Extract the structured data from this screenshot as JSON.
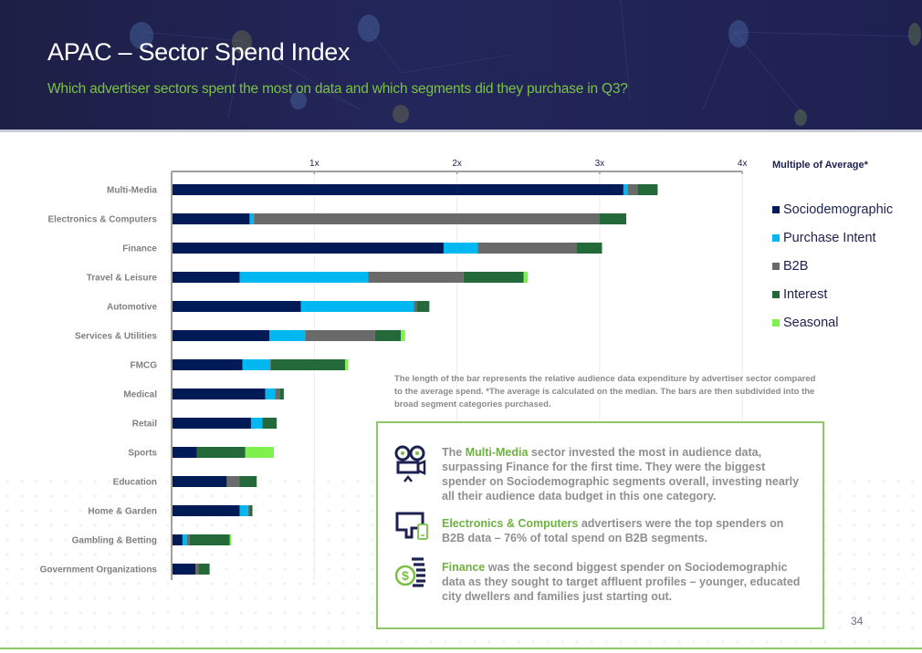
{
  "header": {
    "title": "APAC – Sector Spend Index",
    "subtitle": "Which advertiser sectors spent the most on data and which segments did they purchase in Q3?"
  },
  "chart_data": {
    "type": "bar",
    "orientation": "horizontal",
    "stacked": true,
    "title": "",
    "xlabel": "Multiple of Average*",
    "ylabel": "",
    "xlim": [
      0,
      4
    ],
    "x_ticks": [
      "1x",
      "2x",
      "3x",
      "4x"
    ],
    "x_tick_values": [
      1,
      2,
      3,
      4
    ],
    "grid": true,
    "legend_position": "right",
    "categories": [
      "Multi-Media",
      "Electronics & Computers",
      "Finance",
      "Travel & Leisure",
      "Automotive",
      "Services & Utilities",
      "FMCG",
      "Medical",
      "Retail",
      "Sports",
      "Education",
      "Home & Garden",
      "Gambling & Betting",
      "Government Organizations"
    ],
    "series": [
      {
        "name": "Sociodemographic",
        "color": "#001b55",
        "values": [
          3.16,
          0.54,
          1.9,
          0.47,
          0.9,
          0.68,
          0.49,
          0.65,
          0.55,
          0.17,
          0.38,
          0.47,
          0.07,
          0.16
        ]
      },
      {
        "name": "Purchase Intent",
        "color": "#00b8f1",
        "values": [
          0.03,
          0.03,
          0.24,
          0.9,
          0.79,
          0.25,
          0.19,
          0.07,
          0.08,
          0.0,
          0.0,
          0.06,
          0.03,
          0.0
        ]
      },
      {
        "name": "B2B",
        "color": "#6a6a6a",
        "values": [
          0.07,
          2.42,
          0.69,
          0.67,
          0.02,
          0.49,
          0.01,
          0.03,
          0.0,
          0.0,
          0.09,
          0.01,
          0.02,
          0.02
        ]
      },
      {
        "name": "Interest",
        "color": "#23693a",
        "values": [
          0.14,
          0.19,
          0.18,
          0.42,
          0.09,
          0.18,
          0.52,
          0.03,
          0.1,
          0.34,
          0.12,
          0.02,
          0.28,
          0.08
        ]
      },
      {
        "name": "Seasonal",
        "color": "#7ef14f",
        "values": [
          0.0,
          0.0,
          0.0,
          0.03,
          0.0,
          0.03,
          0.02,
          0.0,
          0.0,
          0.2,
          0.0,
          0.0,
          0.01,
          0.0
        ]
      }
    ]
  },
  "legend": {
    "title": "Multiple of Average*"
  },
  "note": "The length of the bar represents the relative audience data expenditure by advertiser sector compared to the average spend. *The average is calculated on the median. The bars are then subdivided into the broad segment categories purchased.",
  "insights": [
    {
      "icon": "video-camera-icon",
      "highlight": "Multi-Media",
      "text_before": "The ",
      "text_after": " sector invested the most in audience data, surpassing Finance for the first time. They were the biggest spender on Sociodemographic segments overall, investing nearly all their audience data budget in this one category."
    },
    {
      "icon": "computer-mobile-icon",
      "highlight": "Electronics & Computers",
      "text_before": "",
      "text_after": " advertisers were the top spenders on B2B data – 76% of total spend on B2B segments."
    },
    {
      "icon": "dollar-coins-icon",
      "highlight": "Finance",
      "text_before": "",
      "text_after": " was the second biggest spender on Sociodemographic data as they sought to target affluent profiles – younger, educated city dwellers and families just starting out."
    }
  ],
  "page_number": "34",
  "colors": {
    "header_bg": "#1f2250",
    "accent_green": "#7ac143",
    "navy": "#001b55"
  }
}
